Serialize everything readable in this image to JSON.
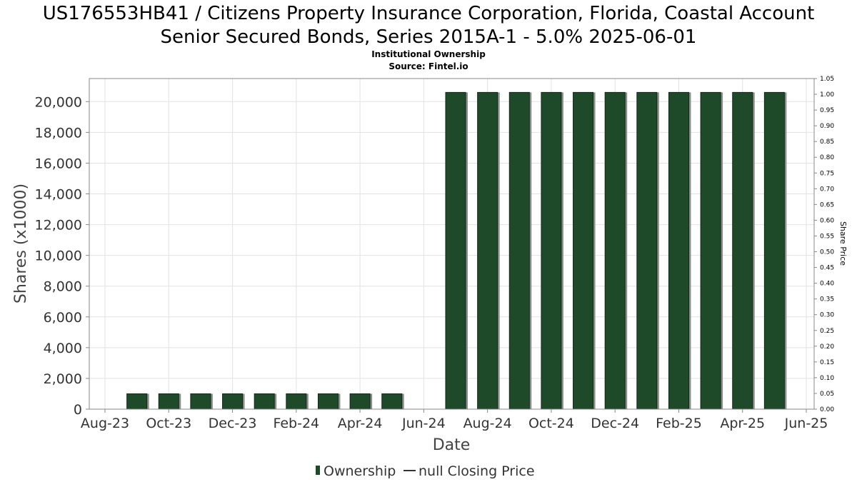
{
  "chart_data": {
    "type": "bar",
    "title_line1": "US176553HB41 / Citizens Property Insurance Corporation, Florida, Coastal Account",
    "title_line2": "Senior Secured Bonds, Series 2015A-1 - 5.0% 2025-06-01",
    "subtitle": "Institutional Ownership",
    "source": "Source: Fintel.io",
    "xlabel": "Date",
    "ylabel": "Shares (x1000)",
    "y2label": "Share Price",
    "ylim": [
      0,
      21500
    ],
    "y2lim": [
      0,
      1.05
    ],
    "yticks": [
      "0",
      "2,000",
      "4,000",
      "6,000",
      "8,000",
      "10,000",
      "12,000",
      "14,000",
      "16,000",
      "18,000",
      "20,000"
    ],
    "ytick_values": [
      0,
      2000,
      4000,
      6000,
      8000,
      10000,
      12000,
      14000,
      16000,
      18000,
      20000
    ],
    "y2ticks": [
      "0.00",
      "0.05",
      "0.10",
      "0.15",
      "0.20",
      "0.25",
      "0.30",
      "0.35",
      "0.40",
      "0.45",
      "0.50",
      "0.55",
      "0.60",
      "0.65",
      "0.70",
      "0.75",
      "0.80",
      "0.85",
      "0.90",
      "0.95",
      "1.00",
      "1.05"
    ],
    "xticks": [
      "Aug-23",
      "Oct-23",
      "Dec-23",
      "Feb-24",
      "Apr-24",
      "Jun-24",
      "Aug-24",
      "Oct-24",
      "Dec-24",
      "Feb-25",
      "Apr-25",
      "Jun-25"
    ],
    "x_months_range": [
      0,
      22
    ],
    "bar_months": [
      1,
      2,
      3,
      4,
      5,
      6,
      7,
      8,
      9,
      11,
      12,
      13,
      14,
      15,
      16,
      17,
      18,
      19,
      20,
      21
    ],
    "values": [
      1000,
      1000,
      1000,
      1000,
      1000,
      1000,
      1000,
      1000,
      1000,
      20600,
      20600,
      20600,
      20600,
      20600,
      20600,
      20600,
      20600,
      20600,
      20600,
      20600
    ],
    "series": [
      {
        "name": "Ownership",
        "color": "#1e4a2a"
      },
      {
        "name": "null Closing Price",
        "color": "#333333"
      }
    ],
    "grid": true,
    "legend_position": "bottom-center"
  }
}
